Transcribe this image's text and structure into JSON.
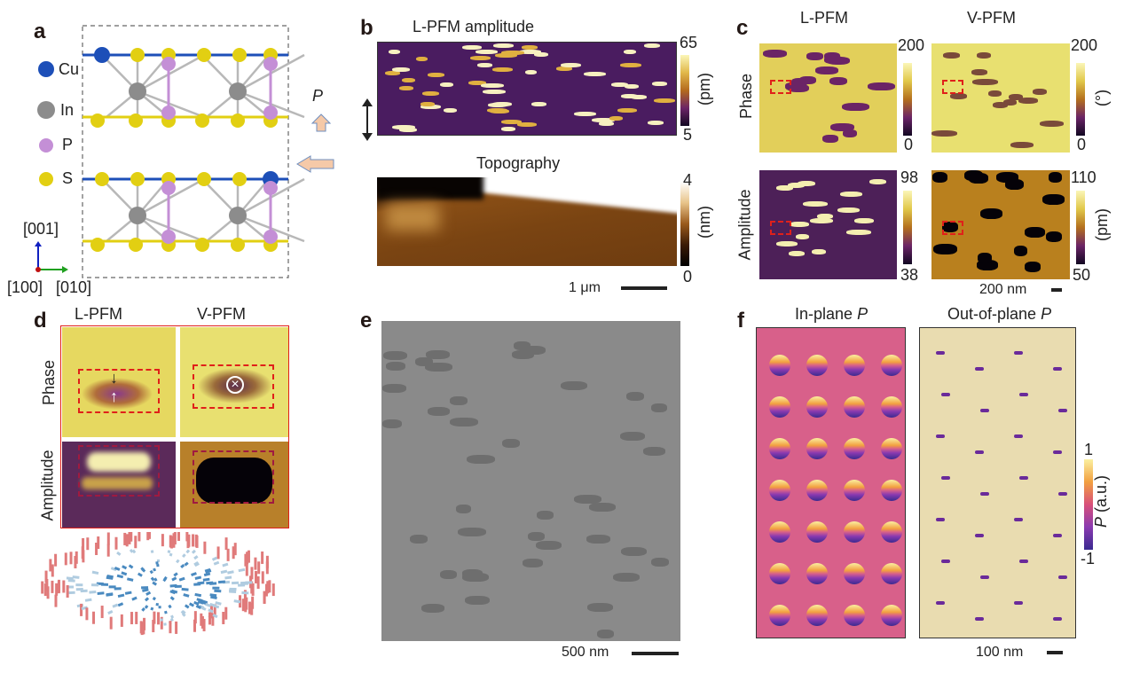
{
  "panels": {
    "a": "a",
    "b": "b",
    "c": "c",
    "d": "d",
    "e": "e",
    "f": "f"
  },
  "a": {
    "legend": [
      "Cu",
      "In",
      "P",
      "S"
    ],
    "axes": {
      "up": "[001]",
      "x": "[100]",
      "y": "[010]"
    },
    "polarization": "P",
    "colors": {
      "Cu": "#1d4fb8",
      "In": "#8c8c8c",
      "P": "#c48fd6",
      "S": "#e2cf12",
      "arrow": "#f5c9a8"
    }
  },
  "b": {
    "amp_title": "L-PFM amplitude",
    "amp_max": "65",
    "amp_min": "5",
    "amp_unit": "(pm)",
    "topo_title": "Topography",
    "topo_max": "4",
    "topo_min": "0",
    "topo_unit": "(nm)",
    "scale": "1 μm"
  },
  "c": {
    "col1": "L-PFM",
    "col2": "V-PFM",
    "row1": "Phase",
    "row2": "Amplitude",
    "phase_l_max": "200",
    "phase_l_min": "0",
    "phase_v_max": "200",
    "phase_v_min": "0",
    "phase_unit": "(°)",
    "amp_l_max": "98",
    "amp_l_min": "38",
    "amp_v_max": "110",
    "amp_v_min": "50",
    "amp_unit": "(pm)",
    "scale": "200 nm"
  },
  "d": {
    "col1": "L-PFM",
    "col2": "V-PFM",
    "row1": "Phase",
    "row2": "Amplitude"
  },
  "e": {
    "scale": "500 nm"
  },
  "f": {
    "title1": "In-plane ",
    "title2": "Out-of-plane ",
    "p": "P",
    "cb_max": "1",
    "cb_min": "-1",
    "cb_label": "P",
    "cb_unit": " (a.u.)",
    "scale": "100 nm"
  }
}
